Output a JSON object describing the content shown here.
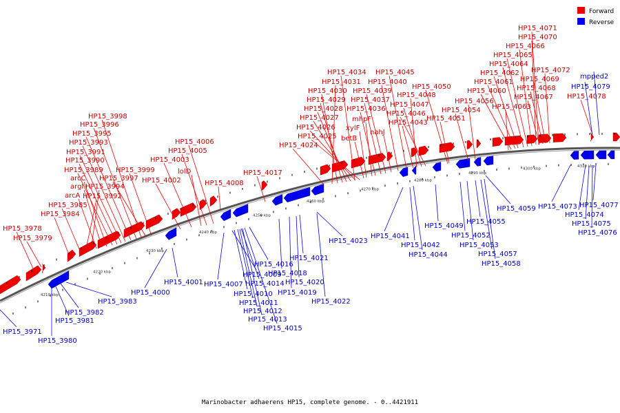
{
  "legend": {
    "forward_label": "Forward",
    "reverse_label": "Reverse",
    "forward_color": "#ee0000",
    "reverse_color": "#0000ee"
  },
  "caption": "Marinobacter adhaerens HP15, complete genome. - 0..4421911",
  "ticks": [
    "4210 kbp",
    "4220 kbp",
    "4230 kbp",
    "4240 kbp",
    "4250 kbp",
    "4260 kbp",
    "4270 kbp",
    "4280 kbp",
    "4290 kbp",
    "4300 kbp",
    "4310 kbp"
  ],
  "forward_labels": [
    "HP15_4071",
    "HP15_4070",
    "HP15_4066",
    "HP15_4065",
    "HP15_4064",
    "HP15_4062",
    "HP15_4072",
    "HP15_4061",
    "HP15_4069",
    "HP15_4060",
    "HP15_4068",
    "HP15_4067",
    "HP15_4063",
    "HP15_4034",
    "HP15_4045",
    "HP15_4031",
    "HP15_4040",
    "HP15_4030",
    "HP15_4039",
    "HP15_4050",
    "HP15_4048",
    "HP15_4029",
    "HP15_4037",
    "HP15_4047",
    "HP15_4028",
    "HP15_4036",
    "HP15_4046",
    "HP15_4027",
    "mhpF",
    "HP15_4043",
    "HP15_4026",
    "xylF",
    "HP15_4025",
    "betB",
    "nahJ",
    "HP15_4024",
    "HP15_4051",
    "HP15_4056",
    "HP15_4054",
    "HP15_3998",
    "HP15_3996",
    "HP15_3995",
    "HP15_3993",
    "HP15_3991",
    "HP15_3990",
    "HP15_3989",
    "arcC",
    "argI",
    "arcA",
    "HP15_3985",
    "HP15_3984",
    "HP15_3999",
    "HP15_3997",
    "HP15_3994",
    "HP15_3992",
    "HP15_4006",
    "HP15_4005",
    "HP15_4003",
    "lolD",
    "HP15_4002",
    "HP15_4008",
    "HP15_4017",
    "HP15_3978",
    "HP15_3979",
    "HP15_4078"
  ],
  "reverse_labels": [
    "mpped2",
    "HP15_4079",
    "HP15_4059",
    "HP15_4073",
    "HP15_4077",
    "HP15_4074",
    "HP15_4075",
    "HP15_4076",
    "HP15_4041",
    "HP15_4042",
    "HP15_4044",
    "HP15_4049",
    "HP15_4052",
    "HP15_4053",
    "HP15_4055",
    "HP15_4057",
    "HP15_4058",
    "HP15_4023",
    "HP15_4021",
    "HP15_4022",
    "HP15_4020",
    "HP15_4019",
    "HP15_4018",
    "HP15_4016",
    "HP15_4014",
    "HP15_4010",
    "HP15_4011",
    "HP15_4012",
    "HP15_4013",
    "HP15_4015",
    "HP15_4009",
    "HP15_4007",
    "HP15_4001",
    "HP15_4000",
    "HP15_3983",
    "HP15_3982",
    "HP15_3981",
    "HP15_3980",
    "HP15_3971"
  ]
}
